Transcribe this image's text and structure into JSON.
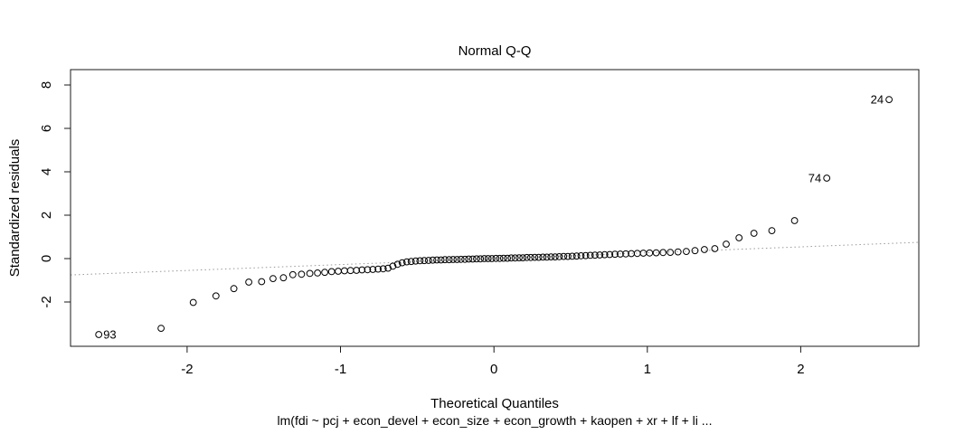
{
  "chart_data": {
    "type": "scatter",
    "title": "Normal Q-Q",
    "xlabel": "Theoretical Quantiles",
    "ylabel": "Standardized residuals",
    "sub_caption": "lm(fdi ~ pcj + econ_devel + econ_size + econ_growth + kaopen + xr + lf + li ...",
    "xlim": [
      -2.76,
      2.77
    ],
    "ylim": [
      -4.04,
      8.71
    ],
    "x_ticks": [
      -2,
      -1,
      0,
      1,
      2
    ],
    "y_ticks": [
      -2,
      0,
      2,
      4,
      6,
      8
    ],
    "grid": false,
    "legend": "none",
    "marker": {
      "shape": "circle-open",
      "radius_px": 3.4,
      "color": "#000000"
    },
    "ref_line": {
      "slope": 0.272,
      "intercept": 0,
      "style": "dotted",
      "color": "#999999"
    },
    "labeled_points": [
      {
        "label": "93",
        "x": -2.576,
        "y": -3.5,
        "side": "right"
      },
      {
        "label": "74",
        "x": 2.17,
        "y": 3.71,
        "side": "left"
      },
      {
        "label": "24",
        "x": 2.576,
        "y": 7.33,
        "side": "left"
      }
    ],
    "points": [
      [
        -2.576,
        -3.5
      ],
      [
        -2.17,
        -3.21
      ],
      [
        -1.96,
        -2.02
      ],
      [
        -1.812,
        -1.72
      ],
      [
        -1.695,
        -1.38
      ],
      [
        -1.598,
        -1.08
      ],
      [
        -1.514,
        -1.06
      ],
      [
        -1.44,
        -0.92
      ],
      [
        -1.372,
        -0.88
      ],
      [
        -1.311,
        -0.74
      ],
      [
        -1.254,
        -0.72
      ],
      [
        -1.2,
        -0.68
      ],
      [
        -1.15,
        -0.66
      ],
      [
        -1.103,
        -0.63
      ],
      [
        -1.058,
        -0.6
      ],
      [
        -1.015,
        -0.58
      ],
      [
        -0.974,
        -0.56
      ],
      [
        -0.935,
        -0.55
      ],
      [
        -0.896,
        -0.54
      ],
      [
        -0.86,
        -0.52
      ],
      [
        -0.824,
        -0.51
      ],
      [
        -0.789,
        -0.5
      ],
      [
        -0.755,
        -0.48
      ],
      [
        -0.722,
        -0.47
      ],
      [
        -0.69,
        -0.44
      ],
      [
        -0.659,
        -0.35
      ],
      [
        -0.628,
        -0.26
      ],
      [
        -0.598,
        -0.19
      ],
      [
        -0.568,
        -0.15
      ],
      [
        -0.539,
        -0.13
      ],
      [
        -0.51,
        -0.11
      ],
      [
        -0.482,
        -0.1
      ],
      [
        -0.454,
        -0.09
      ],
      [
        -0.426,
        -0.08
      ],
      [
        -0.399,
        -0.07
      ],
      [
        -0.372,
        -0.06
      ],
      [
        -0.345,
        -0.06
      ],
      [
        -0.319,
        -0.05
      ],
      [
        -0.292,
        -0.05
      ],
      [
        -0.266,
        -0.04
      ],
      [
        -0.24,
        -0.04
      ],
      [
        -0.215,
        -0.03
      ],
      [
        -0.189,
        -0.03
      ],
      [
        -0.164,
        -0.02
      ],
      [
        -0.138,
        -0.02
      ],
      [
        -0.113,
        -0.01
      ],
      [
        -0.088,
        -0.01
      ],
      [
        -0.063,
        0.0
      ],
      [
        -0.038,
        0.0
      ],
      [
        -0.013,
        0.0
      ],
      [
        0.013,
        0.01
      ],
      [
        0.038,
        0.01
      ],
      [
        0.063,
        0.02
      ],
      [
        0.088,
        0.02
      ],
      [
        0.113,
        0.03
      ],
      [
        0.138,
        0.03
      ],
      [
        0.164,
        0.04
      ],
      [
        0.189,
        0.04
      ],
      [
        0.215,
        0.05
      ],
      [
        0.24,
        0.05
      ],
      [
        0.266,
        0.06
      ],
      [
        0.292,
        0.06
      ],
      [
        0.319,
        0.07
      ],
      [
        0.345,
        0.07
      ],
      [
        0.372,
        0.08
      ],
      [
        0.399,
        0.08
      ],
      [
        0.426,
        0.09
      ],
      [
        0.454,
        0.1
      ],
      [
        0.482,
        0.1
      ],
      [
        0.51,
        0.11
      ],
      [
        0.539,
        0.12
      ],
      [
        0.568,
        0.13
      ],
      [
        0.598,
        0.14
      ],
      [
        0.628,
        0.15
      ],
      [
        0.659,
        0.16
      ],
      [
        0.69,
        0.17
      ],
      [
        0.722,
        0.18
      ],
      [
        0.755,
        0.19
      ],
      [
        0.789,
        0.2
      ],
      [
        0.824,
        0.21
      ],
      [
        0.86,
        0.22
      ],
      [
        0.896,
        0.23
      ],
      [
        0.935,
        0.24
      ],
      [
        0.974,
        0.25
      ],
      [
        1.015,
        0.26
      ],
      [
        1.058,
        0.27
      ],
      [
        1.103,
        0.28
      ],
      [
        1.15,
        0.29
      ],
      [
        1.2,
        0.31
      ],
      [
        1.254,
        0.33
      ],
      [
        1.311,
        0.37
      ],
      [
        1.372,
        0.42
      ],
      [
        1.44,
        0.46
      ],
      [
        1.514,
        0.67
      ],
      [
        1.598,
        0.96
      ],
      [
        1.695,
        1.17
      ],
      [
        1.812,
        1.29
      ],
      [
        1.96,
        1.75
      ],
      [
        2.17,
        3.71
      ],
      [
        2.576,
        7.33
      ]
    ]
  }
}
